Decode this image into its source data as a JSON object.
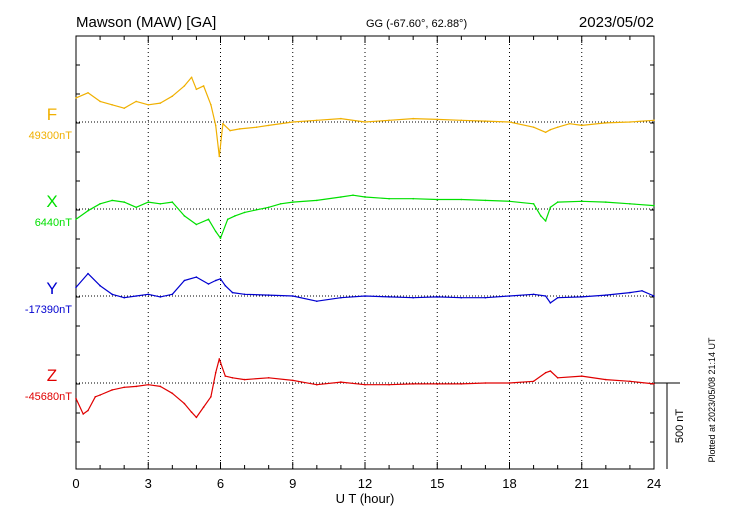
{
  "header": {
    "station": "Mawson (MAW)  [GA]",
    "coords": "GG (-67.60°,  62.88°)",
    "date": "2023/05/02"
  },
  "side_note": "Plotted at 2023/05/08 21:14 UT",
  "colors": {
    "F": "#f0b000",
    "X": "#00e000",
    "Y": "#0000d0",
    "Z": "#e00000"
  },
  "chart_data": {
    "type": "line",
    "xlabel": "U T (hour)",
    "xlim": [
      0,
      24
    ],
    "xticks": [
      "0",
      "3",
      "6",
      "9",
      "12",
      "15",
      "18",
      "21",
      "24"
    ],
    "scale_bar": {
      "label": "500 nT",
      "value_nT": 500
    },
    "series": [
      {
        "name": "F",
        "baseline_label": "49300nT",
        "baseline_nT": 49300,
        "x": [
          0,
          0.5,
          1,
          1.5,
          2,
          2.5,
          3,
          3.5,
          4,
          4.5,
          4.8,
          5,
          5.3,
          5.6,
          5.8,
          5.95,
          6.1,
          6.4,
          6.8,
          7.5,
          8,
          9,
          10,
          11,
          12,
          13,
          14,
          15,
          16,
          17,
          18,
          19,
          19.5,
          19.7,
          20,
          20.5,
          21,
          22,
          23,
          24
        ],
        "values": [
          49440,
          49470,
          49420,
          49400,
          49380,
          49420,
          49400,
          49410,
          49450,
          49510,
          49560,
          49490,
          49510,
          49400,
          49280,
          49100,
          49290,
          49250,
          49260,
          49270,
          49280,
          49300,
          49310,
          49320,
          49300,
          49310,
          49320,
          49315,
          49310,
          49305,
          49300,
          49270,
          49240,
          49255,
          49270,
          49290,
          49280,
          49295,
          49300,
          49310
        ]
      },
      {
        "name": "X",
        "baseline_label": "6440nT",
        "baseline_nT": 6440,
        "x": [
          0,
          0.5,
          1,
          1.5,
          2,
          2.5,
          3,
          3.5,
          4,
          4.5,
          5,
          5.5,
          5.8,
          6,
          6.3,
          6.6,
          7,
          8,
          8.5,
          9,
          10,
          11,
          11.5,
          12,
          13,
          14,
          15,
          16,
          17,
          18,
          19,
          19.3,
          19.5,
          19.7,
          20,
          21,
          22,
          23,
          24
        ],
        "values": [
          6380,
          6430,
          6470,
          6490,
          6480,
          6450,
          6480,
          6470,
          6480,
          6400,
          6350,
          6380,
          6310,
          6270,
          6380,
          6400,
          6420,
          6450,
          6470,
          6480,
          6490,
          6510,
          6520,
          6510,
          6500,
          6500,
          6495,
          6495,
          6490,
          6485,
          6470,
          6400,
          6370,
          6450,
          6480,
          6485,
          6480,
          6470,
          6460
        ]
      },
      {
        "name": "Y",
        "baseline_label": "-17390nT",
        "baseline_nT": -17390,
        "x": [
          0,
          0.5,
          1,
          1.5,
          2,
          2.5,
          3,
          3.5,
          4,
          4.5,
          5,
          5.5,
          5.8,
          6,
          6.2,
          6.5,
          7,
          8,
          9,
          10,
          11,
          12,
          13,
          14,
          15,
          16,
          17,
          18,
          19,
          19.5,
          19.7,
          20,
          21,
          22,
          23,
          23.5,
          24
        ],
        "values": [
          -17340,
          -17260,
          -17330,
          -17380,
          -17400,
          -17390,
          -17380,
          -17395,
          -17380,
          -17300,
          -17280,
          -17320,
          -17300,
          -17290,
          -17330,
          -17370,
          -17380,
          -17385,
          -17390,
          -17420,
          -17400,
          -17390,
          -17395,
          -17400,
          -17395,
          -17400,
          -17400,
          -17390,
          -17380,
          -17390,
          -17430,
          -17400,
          -17395,
          -17385,
          -17370,
          -17360,
          -17390
        ]
      },
      {
        "name": "Z",
        "baseline_label": "-45680nT",
        "baseline_nT": -45680,
        "x": [
          0,
          0.3,
          0.5,
          0.8,
          1,
          1.5,
          2,
          2.5,
          3,
          3.5,
          4,
          4.5,
          4.8,
          5,
          5.3,
          5.6,
          5.8,
          5.95,
          6,
          6.2,
          6.5,
          7,
          8,
          9,
          10,
          11,
          12,
          13,
          14,
          15,
          16,
          17,
          18,
          19,
          19.5,
          19.7,
          20,
          21,
          22,
          23,
          24
        ],
        "values": [
          -45770,
          -45860,
          -45840,
          -45760,
          -45750,
          -45720,
          -45705,
          -45700,
          -45690,
          -45700,
          -45740,
          -45800,
          -45850,
          -45880,
          -45820,
          -45760,
          -45620,
          -45540,
          -45560,
          -45640,
          -45650,
          -45660,
          -45650,
          -45665,
          -45690,
          -45675,
          -45690,
          -45690,
          -45685,
          -45685,
          -45685,
          -45680,
          -45680,
          -45670,
          -45620,
          -45610,
          -45650,
          -45640,
          -45660,
          -45670,
          -45685
        ]
      }
    ]
  }
}
